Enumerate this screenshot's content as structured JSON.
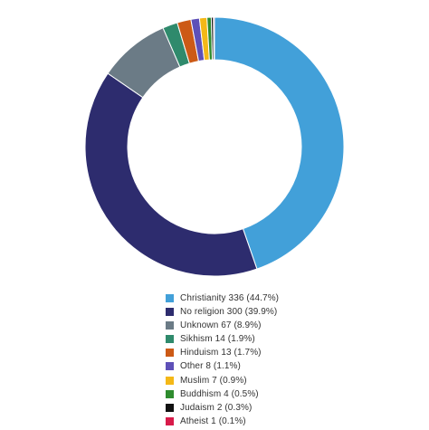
{
  "chart_data": {
    "type": "pie",
    "variant": "donut",
    "title": "",
    "legend_position": "bottom",
    "slices": [
      {
        "label": "Christianity 336 (44.7%)",
        "category": "Christianity",
        "value": 336,
        "percent": 44.7,
        "color": "#42a0d9"
      },
      {
        "label": "No religion 300 (39.9%)",
        "category": "No religion",
        "value": 300,
        "percent": 39.9,
        "color": "#2d2c6e"
      },
      {
        "label": "Unknown 67 (8.9%)",
        "category": "Unknown",
        "value": 67,
        "percent": 8.9,
        "color": "#6b7b86"
      },
      {
        "label": "Sikhism 14 (1.9%)",
        "category": "Sikhism",
        "value": 14,
        "percent": 1.9,
        "color": "#2f8a6c"
      },
      {
        "label": "Hinduism 13 (1.7%)",
        "category": "Hinduism",
        "value": 13,
        "percent": 1.7,
        "color": "#cc5a16"
      },
      {
        "label": "Other 8 (1.1%)",
        "category": "Other",
        "value": 8,
        "percent": 1.1,
        "color": "#5e50b8"
      },
      {
        "label": "Muslim 7 (0.9%)",
        "category": "Muslim",
        "value": 7,
        "percent": 0.9,
        "color": "#f4b817"
      },
      {
        "label": "Buddhism 4 (0.5%)",
        "category": "Buddhism",
        "value": 4,
        "percent": 0.5,
        "color": "#2e8c2e"
      },
      {
        "label": "Judaism 2 (0.3%)",
        "category": "Judaism",
        "value": 2,
        "percent": 0.3,
        "color": "#111111"
      },
      {
        "label": "Atheist 1 (0.1%)",
        "category": "Atheist",
        "value": 1,
        "percent": 0.1,
        "color": "#d81b4a"
      }
    ]
  }
}
